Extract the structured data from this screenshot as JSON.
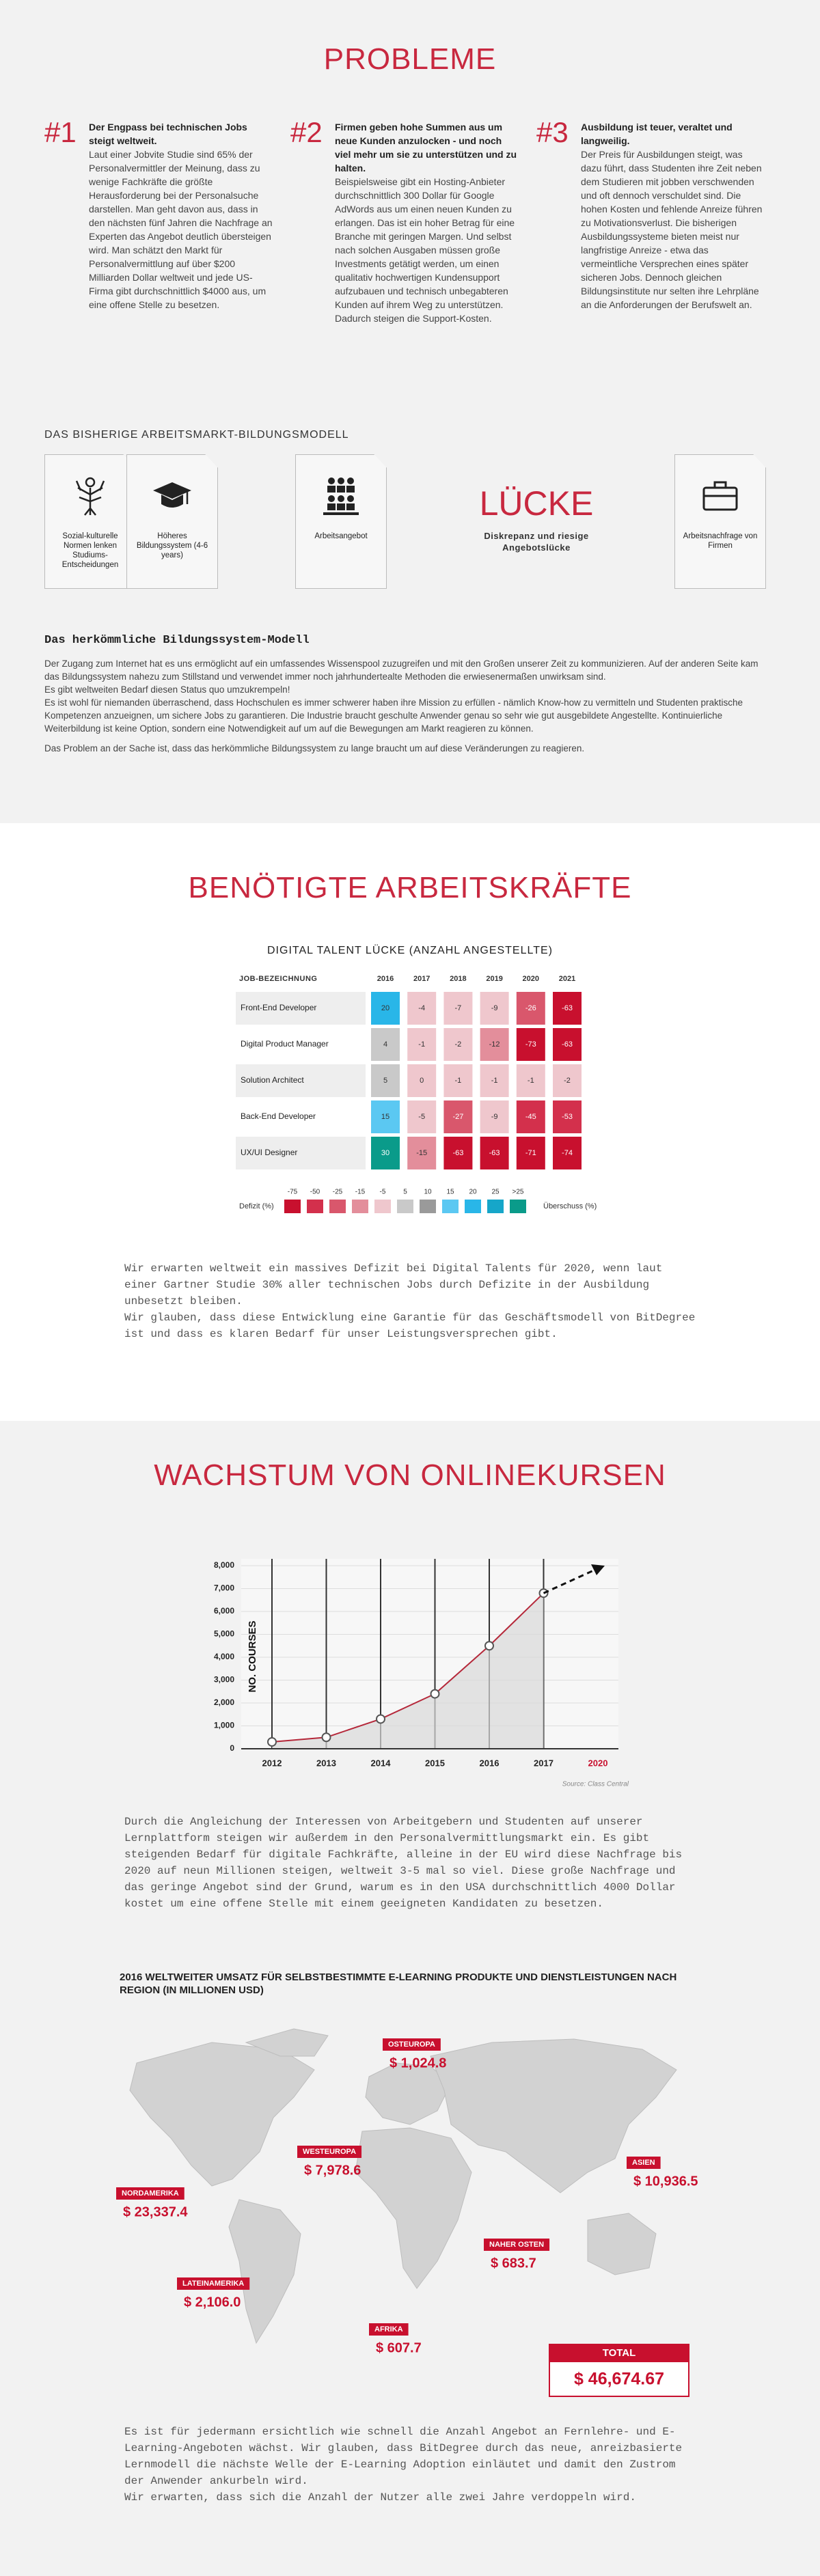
{
  "problems": {
    "title": "PROBLEME",
    "items": [
      {
        "number": "#1",
        "heading": "Der Engpass bei technischen Jobs steigt weltweit.",
        "text": "Laut einer Jobvite Studie sind 65% der Personalvermittler der Meinung, dass zu wenige Fachkräfte die größte Herausforderung bei der Personalsuche darstellen. Man geht davon aus, dass in den nächsten fünf Jahren die Nachfrage an Experten das Angebot deutlich übersteigen wird. Man schätzt den Markt für Personalvermittlung auf über $200 Milliarden Dollar weltweit und jede US-Firma gibt durchschnittlich $4000 aus, um eine offene Stelle zu besetzen."
      },
      {
        "number": "#2",
        "heading": "Firmen geben hohe Summen aus um neue Kunden anzulocken - und noch viel mehr um sie zu unterstützen und zu halten.",
        "text": "Beispielsweise gibt ein Hosting-Anbieter durchschnittlich 300 Dollar für Google AdWords aus um einen neuen Kunden zu erlangen. Das ist ein hoher Betrag für eine Branche mit geringen Margen. Und selbst nach solchen Ausgaben müssen große Investments getätigt werden, um einen qualitativ hochwertigen Kundensupport aufzubauen und technisch unbegabteren Kunden auf ihrem Weg zu unterstützen. Dadurch steigen die Support-Kosten."
      },
      {
        "number": "#3",
        "heading": "Ausbildung ist teuer, veraltet und langweilig.",
        "text": "Der Preis für Ausbildungen steigt, was dazu führt, dass Studenten ihre Zeit neben dem Studieren mit jobben verschwenden und oft dennoch verschuldet sind. Die hohen Kosten und fehlende Anreize führen zu Motivationsverlust. Die bisherigen Ausbildungssysteme bieten meist nur langfristige Anreize - etwa das vermeintliche Versprechen eines später sicheren Jobs. Dennoch gleichen Bildungsinstitute nur selten ihre Lehrpläne an die Anforderungen der Berufswelt an."
      }
    ]
  },
  "model": {
    "heading": "DAS BISHERIGE ARBEITSMARKT-BILDUNGSMODELL",
    "boxes": [
      "Sozial-kulturelle Normen lenken Studiums-Entscheidungen",
      "Höheres Bildungssystem (4-6 years)",
      "Arbeitsangebot",
      "Arbeitsnachfrage von Firmen"
    ],
    "gap_title": "LÜCKE",
    "gap_subtitle": "Diskrepanz und riesige Angebotslücke"
  },
  "education": {
    "heading": "Das herkömmliche Bildungssystem-Modell",
    "paragraphs": [
      "Der Zugang zum Internet hat es uns ermöglicht auf ein umfassendes Wissenspool zuzugreifen und mit den Großen unserer Zeit zu kommunizieren. Auf der anderen Seite kam das Bildungssystem nahezu zum Stillstand und verwendet immer noch jahrhundertealte Methoden die erwiesenermaßen unwirksam sind.",
      "Es gibt weltweiten Bedarf diesen Status quo umzukrempeln!",
      "Es ist wohl für niemanden überraschend, dass Hochschulen es immer schwerer haben ihre Mission zu erfüllen - nämlich Know-how zu vermitteln und Studenten praktische Kompetenzen anzueignen, um sichere Jobs zu garantieren. Die Industrie braucht geschulte Anwender genau so sehr wie gut ausgebildete Angestellte. Kontinuierliche Weiterbildung ist keine Option, sondern eine Notwendigkeit auf um auf die Bewegungen am Markt reagieren zu können.",
      "Das Problem an der Sache ist, dass das herkömmliche Bildungssystem zu lange braucht um auf diese Veränderungen zu reagieren."
    ]
  },
  "talents": {
    "title": "BENÖTIGTE ARBEITSKRÄFTE",
    "paragraphs": [
      "Wir erwarten weltweit ein massives Defizit bei Digital Talents für 2020, wenn laut einer Gartner Studie 30% aller technischen Jobs durch Defizite in der Ausbildung unbesetzt bleiben.",
      "Wir glauben, dass diese Entwicklung eine Garantie für das Geschäftsmodell von BitDegree ist und dass es klaren Bedarf für unser Leistungsversprechen gibt."
    ]
  },
  "growth": {
    "title": "WACHSTUM VON ONLINEKURSEN",
    "paragraphs": [
      "Durch die Angleichung der Interessen von Arbeitgebern und Studenten auf unserer Lernplattform steigen wir außerdem in den Personalvermittlungsmarkt ein. Es gibt steigenden Bedarf für digitale Fachkräfte, alleine in der EU wird diese Nachfrage bis 2020 auf neun Millionen steigen, weltweit 3-5 mal so viel. Diese große Nachfrage und das geringe Angebot sind der Grund, warum es in den USA durchschnittlich 4000 Dollar kostet um eine offene Stelle mit einem geeigneten Kandidaten zu besetzen."
    ]
  },
  "revenue": {
    "title": "2016 WELTWEITER UMSATZ FÜR SELBSTBESTIMMTE E-LEARNING PRODUKTE UND DIENSTLEISTUNGEN NACH REGION (IN MILLIONEN USD)",
    "regions": [
      {
        "name": "OSTEUROPA",
        "value": "$ 1,024.8"
      },
      {
        "name": "WESTEUROPA",
        "value": "$ 7,978.6"
      },
      {
        "name": "ASIEN",
        "value": "$ 10,936.5"
      },
      {
        "name": "NORDAMERIKA",
        "value": "$ 23,337.4"
      },
      {
        "name": "NAHER OSTEN",
        "value": "$ 683.7"
      },
      {
        "name": "LATEINAMERIKA",
        "value": "$ 2,106.0"
      },
      {
        "name": "AFRIKA",
        "value": "$ 607.7"
      }
    ],
    "total_label": "TOTAL",
    "total_value": "$ 46,674.67"
  },
  "outlook": {
    "paragraphs": [
      "Es ist für jedermann ersichtlich wie schnell die Anzahl  Angebot an Fernlehre- und E-Learning-Angeboten wächst. Wir glauben, dass BitDegree durch das neue, anreizbasierte Lernmodell die nächste Welle der E-Learning Adoption einläutet und damit den Zustrom der Anwender ankurbeln wird.",
      "Wir erwarten, dass sich die Anzahl der Nutzer alle zwei Jahre verdoppeln wird."
    ]
  },
  "chart_data": [
    {
      "type": "heatmap",
      "title": "DIGITAL TALENT LÜCKE (ANZAHL ANGESTELLTE)",
      "row_header": "JOB-BEZEICHNUNG",
      "columns": [
        2016,
        2017,
        2018,
        2019,
        2020,
        2021
      ],
      "rows": [
        "Front-End Developer",
        "Digital Product Manager",
        "Solution Architect",
        "Back-End Developer",
        "UX/UI Designer"
      ],
      "values": [
        [
          20,
          -4,
          -7,
          -9,
          -26,
          -63
        ],
        [
          4,
          -1,
          -2,
          -12,
          -73,
          -63
        ],
        [
          5,
          0,
          -1,
          -1,
          -1,
          -2
        ],
        [
          15,
          -5,
          -27,
          -9,
          -45,
          -53
        ],
        [
          30,
          -15,
          -63,
          -63,
          -71,
          -74
        ]
      ],
      "legend_left": "Defizit (%)",
      "legend_right": "Überschuss (%)",
      "legend": [
        {
          "label": "-75",
          "color": "#c8102e"
        },
        {
          "label": "-50",
          "color": "#d3304c"
        },
        {
          "label": "-25",
          "color": "#d9576c"
        },
        {
          "label": "-15",
          "color": "#e38e9b"
        },
        {
          "label": "-5",
          "color": "#efc7cd"
        },
        {
          "label": "5",
          "color": "#c9c9c9"
        },
        {
          "label": "10",
          "color": "#9a9a9a"
        },
        {
          "label": "15",
          "color": "#5bc8f2"
        },
        {
          "label": "20",
          "color": "#29b6e8"
        },
        {
          "label": "25",
          "color": "#16a6c9"
        },
        {
          "label": ">25",
          "color": "#0a9b8a"
        }
      ]
    },
    {
      "type": "line",
      "categories": [
        "2012",
        "2013",
        "2014",
        "2015",
        "2016",
        "2017",
        "2020"
      ],
      "values": [
        300,
        500,
        1300,
        2400,
        4500,
        6800,
        null
      ],
      "projection_value": 8000,
      "ylabel": "NO. COURSES",
      "source": "Source: Class Central",
      "color": "#b5283a",
      "highlight_color": "#c8102e",
      "ylim": [
        0,
        8000
      ],
      "yticks": [
        0,
        {
          "value": 1000,
          "label": "1,000"
        },
        {
          "value": 2000,
          "label": "2,000"
        },
        {
          "value": 3000,
          "label": "3,000"
        },
        {
          "value": 4000,
          "label": "4,000"
        },
        {
          "value": 5000,
          "label": "5,000"
        },
        {
          "value": 6000,
          "label": "6,000"
        },
        {
          "value": 7000,
          "label": "7,000"
        },
        {
          "value": 8000,
          "label": "8,000"
        }
      ],
      "grid": true
    }
  ]
}
